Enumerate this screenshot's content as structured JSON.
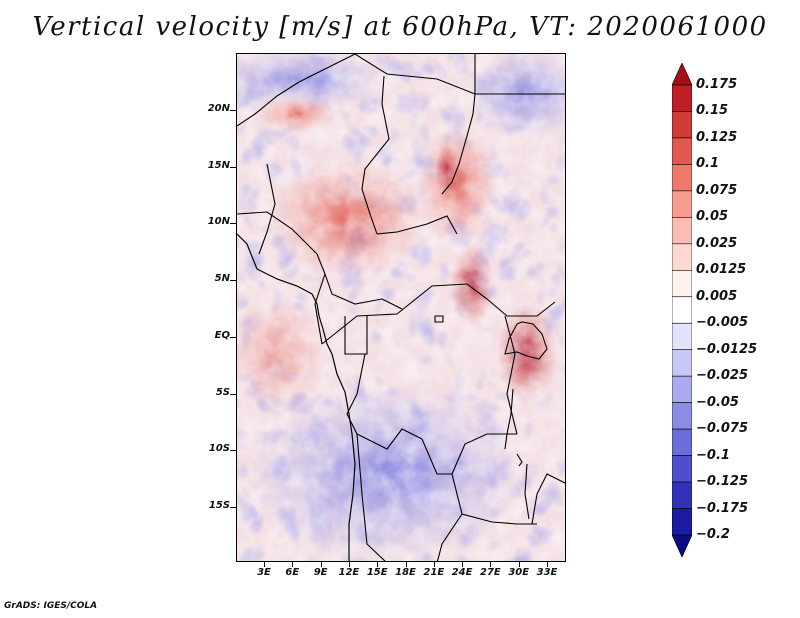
{
  "title": "Vertical velocity [m/s] at 600hPa, VT: 2020061000",
  "footer": "GrADS: IGES/COLA",
  "map": {
    "lat_labels": [
      "20N",
      "15N",
      "10N",
      "5N",
      "EQ",
      "5S",
      "10S",
      "15S"
    ],
    "lon_labels": [
      "3E",
      "6E",
      "9E",
      "12E",
      "15E",
      "18E",
      "21E",
      "24E",
      "27E",
      "30E",
      "33E"
    ],
    "field": "vertical velocity",
    "level": "600hPa",
    "valid_time": "2020061000"
  },
  "colorbar": {
    "labels": [
      "0.175",
      "0.15",
      "0.125",
      "0.1",
      "0.075",
      "0.05",
      "0.025",
      "0.0125",
      "0.005",
      "−0.005",
      "−0.0125",
      "−0.025",
      "−0.05",
      "−0.075",
      "−0.1",
      "−0.125",
      "−0.175",
      "−0.2"
    ],
    "colors": [
      "#a50f15",
      "#be1e24",
      "#d33b36",
      "#e25a4f",
      "#ee7a6b",
      "#f59c8e",
      "#fbbdb3",
      "#fdd9d2",
      "#fff1ee",
      "#ffffff",
      "#e3e3fb",
      "#c8c8f5",
      "#aaaaee",
      "#8c8ce5",
      "#6d6dd9",
      "#4f4fcc",
      "#3232b8",
      "#1c1ca0",
      "#0b0b85"
    ]
  },
  "chart_data": {
    "type": "heatmap",
    "title": "Vertical velocity [m/s] at 600hPa, VT: 2020061000",
    "x_axis": {
      "labels": [
        "3E",
        "6E",
        "9E",
        "12E",
        "15E",
        "18E",
        "21E",
        "24E",
        "27E",
        "30E",
        "33E"
      ]
    },
    "y_axis": {
      "labels": [
        "20N",
        "15N",
        "10N",
        "5N",
        "EQ",
        "5S",
        "10S",
        "15S"
      ]
    },
    "color_levels": [
      0.175,
      0.15,
      0.125,
      0.1,
      0.075,
      0.05,
      0.025,
      0.0125,
      0.005,
      -0.005,
      -0.0125,
      -0.025,
      -0.05,
      -0.075,
      -0.1,
      -0.125,
      -0.175,
      -0.2
    ]
  }
}
